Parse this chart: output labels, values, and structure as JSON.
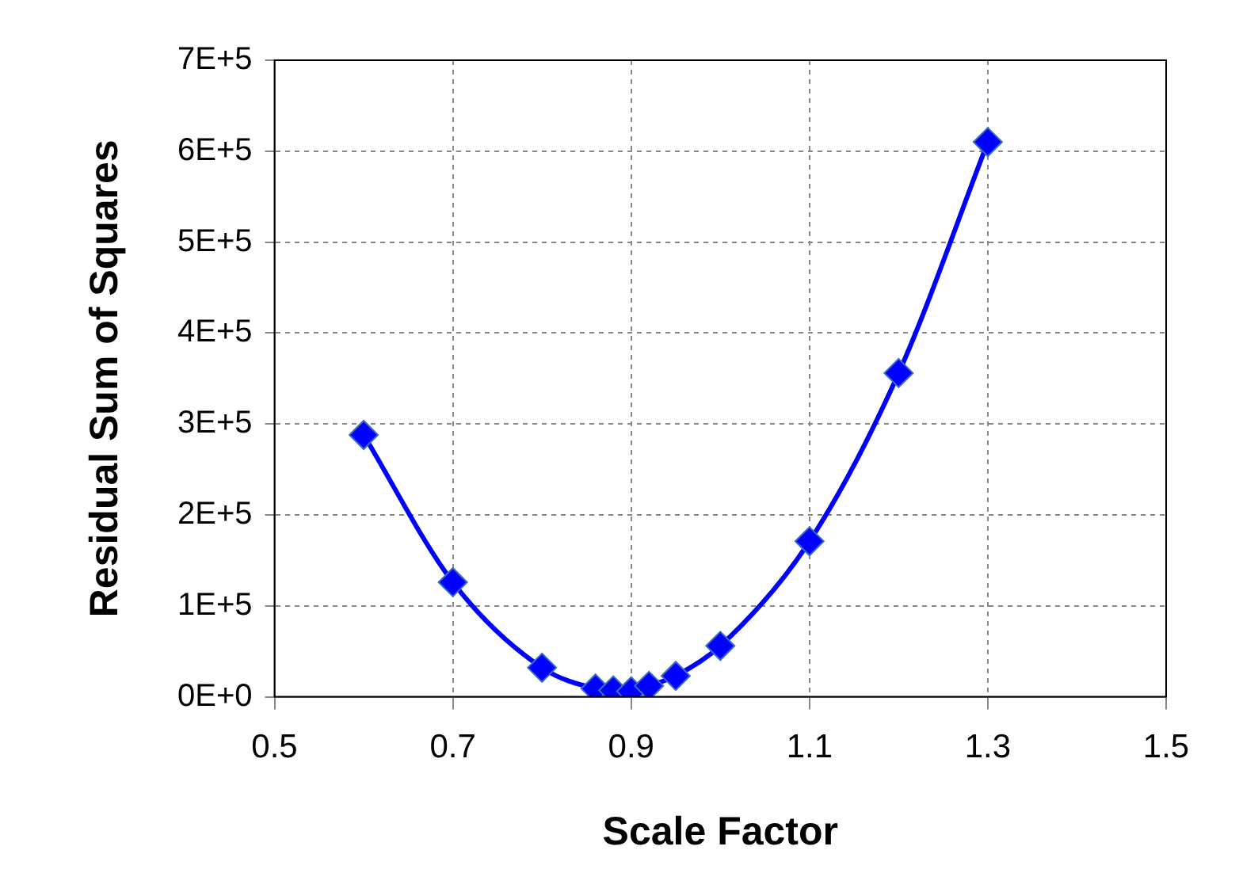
{
  "chart_data": {
    "type": "line",
    "xlabel": "Scale Factor",
    "ylabel": "Residual Sum of Squares",
    "x": [
      0.6,
      0.7,
      0.8,
      0.86,
      0.88,
      0.9,
      0.92,
      0.95,
      1.0,
      1.1,
      1.2,
      1.3
    ],
    "series": [
      {
        "color": "#0000ff",
        "values": [
          288000,
          126000,
          32000,
          9000,
          7000,
          6000,
          12000,
          23000,
          56000,
          171000,
          356000,
          610000
        ]
      }
    ],
    "xlim": [
      0.5,
      1.5
    ],
    "xticks": [
      0.5,
      0.7,
      0.9,
      1.1,
      1.3,
      1.5
    ],
    "ylim": [
      0,
      700000
    ],
    "yticks": [
      {
        "value": 0,
        "label": "0E+0"
      },
      {
        "value": 100000,
        "label": "1E+5"
      },
      {
        "value": 200000,
        "label": "2E+5"
      },
      {
        "value": 300000,
        "label": "3E+5"
      },
      {
        "value": 400000,
        "label": "4E+5"
      },
      {
        "value": 500000,
        "label": "5E+5"
      },
      {
        "value": 600000,
        "label": "6E+5"
      },
      {
        "value": 700000,
        "label": "7E+5"
      }
    ],
    "grid": true,
    "marker": "diamond",
    "line_style": "solid",
    "legend": false
  }
}
